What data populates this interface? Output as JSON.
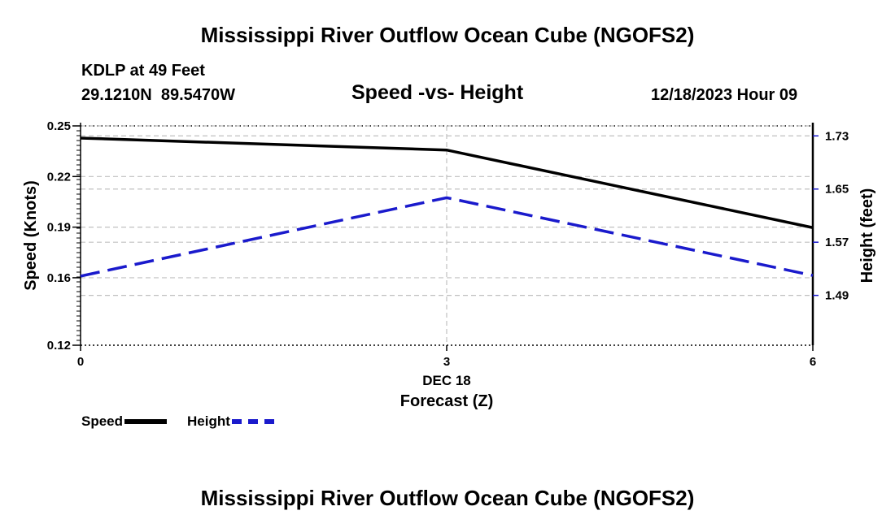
{
  "header": {
    "title": "Mississippi River Outflow Ocean Cube (NGOFS2)",
    "station": "KDLP at 49 Feet",
    "coords": "29.1210N  89.5470W",
    "subtitle": "Speed -vs- Height",
    "datetime": "12/18/2023 Hour 09"
  },
  "footer": {
    "title": "Mississippi River Outflow Ocean Cube (NGOFS2)"
  },
  "colors": {
    "speed": "#000000",
    "height": "#1a1acc",
    "grid": "#c0c0c0"
  },
  "chart_data": {
    "type": "line",
    "title": "Speed -vs- Height",
    "x": [
      0,
      3,
      6
    ],
    "x_tick_labels": [
      "0",
      "3",
      "6"
    ],
    "xlabel_date": "DEC 18",
    "xlabel": "Forecast (Z)",
    "xlim": [
      0,
      6
    ],
    "ylabel": "Speed (Knots)",
    "ylim": [
      0.12,
      0.25
    ],
    "y_ticks": [
      0.25,
      0.22,
      0.19,
      0.16,
      0.12
    ],
    "y_tick_labels": [
      "0.25",
      "0.22",
      "0.19",
      "0.16",
      "0.12"
    ],
    "y2label": "Height (feet)",
    "y2lim": [
      1.415,
      1.745
    ],
    "y2_ticks": [
      1.73,
      1.65,
      1.57,
      1.49
    ],
    "y2_tick_labels": [
      "1.73",
      "1.65",
      "1.57",
      "1.49"
    ],
    "series": [
      {
        "name": "Speed",
        "axis": "left",
        "style": "solid",
        "values": [
          0.2428,
          0.2357,
          0.1897
        ]
      },
      {
        "name": "Height",
        "axis": "right",
        "style": "dashed",
        "values": [
          1.519,
          1.637,
          1.52
        ]
      }
    ],
    "legend": [
      "Speed",
      "Height"
    ],
    "legend_position": "bottom-left",
    "grid": true
  }
}
